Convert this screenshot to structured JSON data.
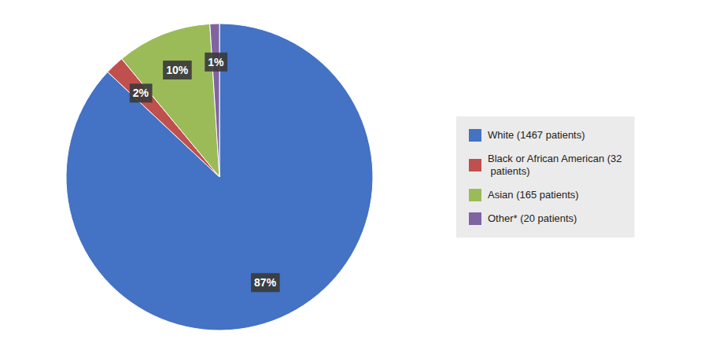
{
  "chart_data": {
    "type": "pie",
    "categories": [
      "White (1467 patients)",
      "Black or African American (32\n patients)",
      "Asian (165 patients)",
      "Other* (20 patients)"
    ],
    "values": [
      87,
      2,
      10,
      1
    ],
    "value_labels": [
      "87%",
      "2%",
      "10%",
      "1%"
    ],
    "colors": [
      "#4472C4",
      "#C0504D",
      "#9BBB59",
      "#8064A2"
    ],
    "data_labels": true,
    "legend": "right"
  }
}
